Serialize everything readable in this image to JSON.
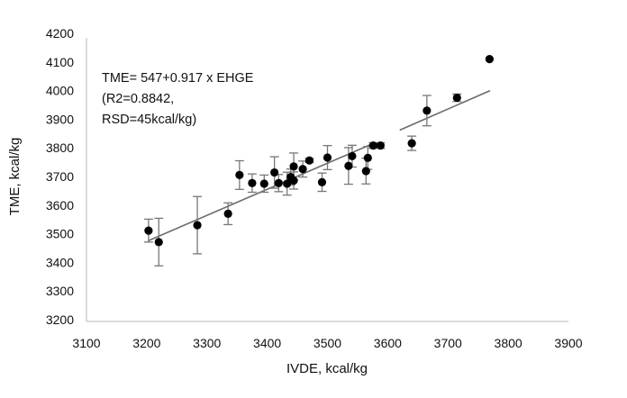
{
  "chart_data": {
    "type": "scatter",
    "title": "",
    "xlabel": "IVDE, kcal/kg",
    "ylabel": "TME, kcal/kg",
    "xlim": [
      3100,
      3900
    ],
    "ylim": [
      3200,
      4200
    ],
    "xticks": [
      "3100",
      "3200",
      "3300",
      "3400",
      "3500",
      "3600",
      "3700",
      "3800",
      "3900"
    ],
    "yticks": [
      "3200",
      "3300",
      "3400",
      "3500",
      "3600",
      "3700",
      "3800",
      "3900",
      "4000",
      "4100",
      "4200"
    ],
    "grid": false,
    "annotation": [
      "TME= 547+0.917 x EHGE",
      "(R2=0.8842,",
      "RSD=45kcal/kg)"
    ],
    "points": [
      {
        "x": 3203,
        "y": 3511,
        "err": 40
      },
      {
        "x": 3220,
        "y": 3471,
        "err": 83
      },
      {
        "x": 3284,
        "y": 3530,
        "err": 100
      },
      {
        "x": 3335,
        "y": 3570,
        "err": 38
      },
      {
        "x": 3354,
        "y": 3705,
        "err": 50
      },
      {
        "x": 3375,
        "y": 3677,
        "err": 32
      },
      {
        "x": 3395,
        "y": 3675,
        "err": 30
      },
      {
        "x": 3412,
        "y": 3714,
        "err": 55
      },
      {
        "x": 3419,
        "y": 3677,
        "err": 30
      },
      {
        "x": 3433,
        "y": 3675,
        "err": 40
      },
      {
        "x": 3439,
        "y": 3698,
        "err": 28
      },
      {
        "x": 3444,
        "y": 3686,
        "err": 30
      },
      {
        "x": 3444,
        "y": 3735,
        "err": 47
      },
      {
        "x": 3459,
        "y": 3726,
        "err": 28
      },
      {
        "x": 3470,
        "y": 3756,
        "err": 7
      },
      {
        "x": 3491,
        "y": 3680,
        "err": 32
      },
      {
        "x": 3500,
        "y": 3766,
        "err": 42
      },
      {
        "x": 3535,
        "y": 3737,
        "err": 64
      },
      {
        "x": 3541,
        "y": 3771,
        "err": 38
      },
      {
        "x": 3564,
        "y": 3719,
        "err": 45
      },
      {
        "x": 3567,
        "y": 3765,
        "err": 40
      },
      {
        "x": 3576,
        "y": 3808,
        "err": 10
      },
      {
        "x": 3588,
        "y": 3808,
        "err": 10
      },
      {
        "x": 3640,
        "y": 3816,
        "err": 25
      },
      {
        "x": 3665,
        "y": 3930,
        "err": 53
      },
      {
        "x": 3715,
        "y": 3975,
        "err": 13
      },
      {
        "x": 3769,
        "y": 4110,
        "err": 0
      }
    ],
    "trendline_segments": [
      [
        [
          3203,
          3476
        ],
        [
          3570,
          3810
        ]
      ],
      [
        [
          3620,
          3862
        ],
        [
          3770,
          4000
        ]
      ]
    ]
  }
}
